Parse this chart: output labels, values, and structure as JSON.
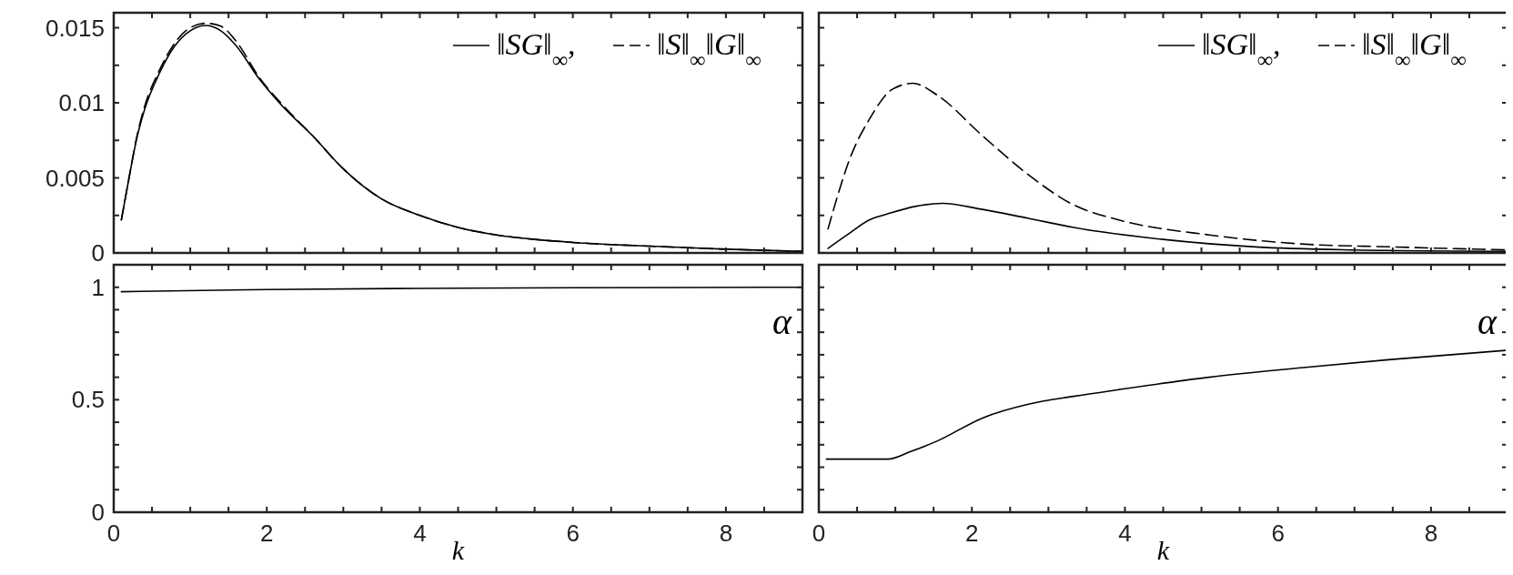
{
  "chart_data": [
    {
      "type": "line",
      "xlim": [
        0,
        9
      ],
      "xticks": [
        0,
        {
          "value": 0.5,
          "label": null
        },
        {
          "value": 1,
          "label": null
        },
        {
          "value": 1.5,
          "label": null
        },
        2,
        {
          "value": 2.5,
          "label": null
        },
        {
          "value": 3,
          "label": null
        },
        {
          "value": 3.5,
          "label": null
        },
        4,
        {
          "value": 4.5,
          "label": null
        },
        {
          "value": 5,
          "label": null
        },
        {
          "value": 5.5,
          "label": null
        },
        6,
        {
          "value": 6.5,
          "label": null
        },
        {
          "value": 7,
          "label": null
        },
        {
          "value": 7.5,
          "label": null
        },
        8,
        {
          "value": 8.5,
          "label": null
        }
      ],
      "ylim": [
        0,
        0.016
      ],
      "yticks": [
        0,
        {
          "value": 0.0025,
          "label": null
        },
        0.005,
        {
          "value": 0.0075,
          "label": null
        },
        0.01,
        {
          "value": 0.0125,
          "label": null
        },
        0.015
      ],
      "tick_labels": "y",
      "legend": "top right",
      "series": [
        {
          "name": "‖SG‖$_{∞}$,",
          "color": "#000000",
          "line_style": "solid",
          "x": [
            0.1,
            0.2,
            0.3,
            0.4,
            0.6,
            0.8,
            1.0,
            1.2,
            1.4,
            1.6,
            1.9,
            2.2,
            2.6,
            3.0,
            3.5,
            4.0,
            4.5,
            5.0,
            5.5,
            6.0,
            7.0,
            8.0,
            9.0
          ],
          "values": [
            0.0022,
            0.005,
            0.0076,
            0.0095,
            0.012,
            0.0138,
            0.0148,
            0.01515,
            0.0148,
            0.0138,
            0.0116,
            0.0098,
            0.0078,
            0.0056,
            0.0036,
            0.0025,
            0.0017,
            0.0012,
            0.0009,
            0.0007,
            0.00045,
            0.00025,
            0.0001
          ]
        },
        {
          "name": "‖S‖$_{∞}$‖G‖$_{∞}$",
          "color": "#000000",
          "line_style": "dashed",
          "x": [
            0.1,
            0.2,
            0.3,
            0.4,
            0.6,
            0.8,
            1.0,
            1.2,
            1.4,
            1.6,
            1.9,
            2.2,
            2.6,
            3.0,
            3.5,
            4.0,
            4.5,
            5.0,
            5.5,
            6.0,
            7.0,
            8.0,
            9.0
          ],
          "values": [
            0.0022,
            0.005,
            0.0077,
            0.0097,
            0.0122,
            0.014,
            0.015,
            0.0153,
            0.0151,
            0.0141,
            0.0117,
            0.0099,
            0.0078,
            0.0056,
            0.0036,
            0.0025,
            0.0017,
            0.0012,
            0.0009,
            0.0007,
            0.00045,
            0.00025,
            0.0001
          ]
        }
      ]
    },
    {
      "type": "line",
      "xlim": [
        0,
        9
      ],
      "xticks": [
        0,
        {
          "value": 0.5,
          "label": null
        },
        {
          "value": 1,
          "label": null
        },
        {
          "value": 1.5,
          "label": null
        },
        2,
        {
          "value": 2.5,
          "label": null
        },
        {
          "value": 3,
          "label": null
        },
        {
          "value": 3.5,
          "label": null
        },
        4,
        {
          "value": 4.5,
          "label": null
        },
        {
          "value": 5,
          "label": null
        },
        {
          "value": 5.5,
          "label": null
        },
        6,
        {
          "value": 6.5,
          "label": null
        },
        {
          "value": 7,
          "label": null
        },
        {
          "value": 7.5,
          "label": null
        },
        8,
        {
          "value": 8.5,
          "label": null
        }
      ],
      "ylim": [
        0,
        0.016
      ],
      "yticks": [
        0,
        {
          "value": 0.0025,
          "label": null
        },
        0.005,
        {
          "value": 0.0075,
          "label": null
        },
        0.01,
        {
          "value": 0.0125,
          "label": null
        },
        0.015
      ],
      "tick_labels": false,
      "legend": "top right",
      "series": [
        {
          "name": "‖SG‖$_{∞}$,",
          "color": "#000000",
          "line_style": "solid",
          "x": [
            0.12,
            0.37,
            0.66,
            0.9,
            1.26,
            1.61,
            2.14,
            2.74,
            3.33,
            4.5,
            5.7,
            7.0,
            9.0
          ],
          "values": [
            0.0003,
            0.0012,
            0.0022,
            0.0026,
            0.0031,
            0.0033,
            0.0029,
            0.0023,
            0.0017,
            0.0009,
            0.0004,
            0.0002,
            0.0001
          ]
        },
        {
          "name": "‖S‖$_{∞}$‖G‖$_{∞}$",
          "color": "#000000",
          "line_style": "dashed",
          "x": [
            0.12,
            0.43,
            0.66,
            0.96,
            1.23,
            1.55,
            2.14,
            2.74,
            3.33,
            3.92,
            5.1,
            6.3,
            7.5,
            9.0
          ],
          "values": [
            0.0016,
            0.0066,
            0.0089,
            0.0109,
            0.0113,
            0.0105,
            0.0078,
            0.0052,
            0.0032,
            0.0022,
            0.0012,
            0.0006,
            0.0004,
            0.0002
          ]
        }
      ]
    },
    {
      "type": "line",
      "xlabel": "k",
      "xlim": [
        0,
        9
      ],
      "xticks": [
        0,
        {
          "value": 0.5,
          "label": null
        },
        {
          "value": 1,
          "label": null
        },
        {
          "value": 1.5,
          "label": null
        },
        2,
        {
          "value": 2.5,
          "label": null
        },
        {
          "value": 3,
          "label": null
        },
        {
          "value": 3.5,
          "label": null
        },
        4,
        {
          "value": 4.5,
          "label": null
        },
        {
          "value": 5,
          "label": null
        },
        {
          "value": 5.5,
          "label": null
        },
        6,
        {
          "value": 6.5,
          "label": null
        },
        {
          "value": 7,
          "label": null
        },
        {
          "value": 7.5,
          "label": null
        },
        8,
        {
          "value": 8.5,
          "label": null
        }
      ],
      "ylim": [
        0,
        1.1
      ],
      "yticks": [
        0,
        {
          "value": 0.1,
          "label": null
        },
        {
          "value": 0.2,
          "label": null
        },
        {
          "value": 0.3,
          "label": null
        },
        {
          "value": 0.4,
          "label": null
        },
        0.5,
        {
          "value": 0.6,
          "label": null
        },
        {
          "value": 0.7,
          "label": null
        },
        {
          "value": 0.8,
          "label": null
        },
        {
          "value": 0.9,
          "label": null
        },
        1
      ],
      "series": [
        {
          "name": "α",
          "color": "#000000",
          "line_style": "solid",
          "x": [
            0.1,
            2,
            4,
            6,
            9
          ],
          "values": [
            0.98,
            0.99,
            0.995,
            0.998,
            1.0
          ]
        }
      ]
    },
    {
      "type": "line",
      "xlabel": "k",
      "xlim": [
        0,
        9
      ],
      "xticks": [
        0,
        {
          "value": 0.5,
          "label": null
        },
        {
          "value": 1,
          "label": null
        },
        {
          "value": 1.5,
          "label": null
        },
        2,
        {
          "value": 2.5,
          "label": null
        },
        {
          "value": 3,
          "label": null
        },
        {
          "value": 3.5,
          "label": null
        },
        4,
        {
          "value": 4.5,
          "label": null
        },
        {
          "value": 5,
          "label": null
        },
        {
          "value": 5.5,
          "label": null
        },
        6,
        {
          "value": 6.5,
          "label": null
        },
        {
          "value": 7,
          "label": null
        },
        {
          "value": 7.5,
          "label": null
        },
        8,
        {
          "value": 8.5,
          "label": null
        }
      ],
      "ylim": [
        0,
        1.1
      ],
      "yticks": [
        0,
        {
          "value": 0.1,
          "label": null
        },
        {
          "value": 0.2,
          "label": null
        },
        {
          "value": 0.3,
          "label": null
        },
        {
          "value": 0.4,
          "label": null
        },
        0.5,
        {
          "value": 0.6,
          "label": null
        },
        {
          "value": 0.7,
          "label": null
        },
        {
          "value": 0.8,
          "label": null
        },
        {
          "value": 0.9,
          "label": null
        },
        1
      ],
      "tick_labels": "x",
      "series": [
        {
          "name": "α",
          "color": "#000000",
          "line_style": "solid",
          "x": [
            0.1,
            0.5,
            0.9,
            1.2,
            1.55,
            2.14,
            2.74,
            3.33,
            3.92,
            5.1,
            6.3,
            7.48,
            9.0
          ],
          "values": [
            0.236,
            0.236,
            0.236,
            0.27,
            0.317,
            0.419,
            0.48,
            0.515,
            0.545,
            0.6,
            0.642,
            0.679,
            0.72
          ]
        }
      ]
    }
  ]
}
